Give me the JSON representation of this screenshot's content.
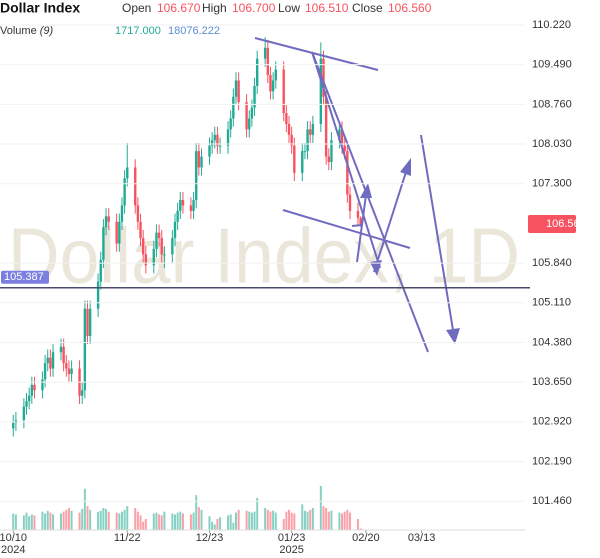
{
  "chart_data": {
    "type": "candlestick",
    "title": "Dollar Index",
    "watermark": "Dollar Index, 1D",
    "legend": [
      {
        "name": "Open",
        "value": 106.67,
        "label": "106.670"
      },
      {
        "name": "High",
        "value": 106.7,
        "label": "106.700"
      },
      {
        "name": "Low",
        "value": 106.51,
        "label": "106.510"
      },
      {
        "name": "Close",
        "value": 106.56,
        "label": "106.560"
      }
    ],
    "volume_title": "Volume",
    "volume_period": "(9)",
    "volume_legend": [
      {
        "value": 1717,
        "label": "1717.000",
        "color": "#22ab94"
      },
      {
        "value": 18076.222,
        "label": "18076.222",
        "color": "#5b8fd6"
      }
    ],
    "up_color": "#22ab94",
    "down_color": "#f7525f",
    "x": [
      "2024-10-10",
      "2024-10-11",
      "2024-10-14",
      "2024-10-15",
      "2024-10-16",
      "2024-10-17",
      "2024-10-18",
      "2024-10-21",
      "2024-10-22",
      "2024-10-23",
      "2024-10-24",
      "2024-10-25",
      "2024-10-28",
      "2024-10-29",
      "2024-10-30",
      "2024-10-31",
      "2024-11-01",
      "2024-11-04",
      "2024-11-05",
      "2024-11-06",
      "2024-11-07",
      "2024-11-08",
      "2024-11-11",
      "2024-11-12",
      "2024-11-13",
      "2024-11-14",
      "2024-11-15",
      "2024-11-18",
      "2024-11-19",
      "2024-11-20",
      "2024-11-21",
      "2024-11-22",
      "2024-11-25",
      "2024-11-26",
      "2024-11-27",
      "2024-11-28",
      "2024-11-29",
      "2024-12-02",
      "2024-12-03",
      "2024-12-04",
      "2024-12-05",
      "2024-12-06",
      "2024-12-09",
      "2024-12-10",
      "2024-12-11",
      "2024-12-12",
      "2024-12-13",
      "2024-12-16",
      "2024-12-17",
      "2024-12-18",
      "2024-12-19",
      "2024-12-20",
      "2024-12-23",
      "2024-12-24",
      "2024-12-25",
      "2024-12-26",
      "2024-12-27",
      "2024-12-30",
      "2024-12-31",
      "2025-01-01",
      "2025-01-02",
      "2025-01-03",
      "2025-01-06",
      "2025-01-07",
      "2025-01-08",
      "2025-01-09",
      "2025-01-10",
      "2025-01-13",
      "2025-01-14",
      "2025-01-15",
      "2025-01-16",
      "2025-01-17",
      "2025-01-20",
      "2025-01-21",
      "2025-01-22",
      "2025-01-23",
      "2025-01-24",
      "2025-01-27",
      "2025-01-28",
      "2025-01-29",
      "2025-01-30",
      "2025-01-31",
      "2025-02-03",
      "2025-02-04",
      "2025-02-05",
      "2025-02-06",
      "2025-02-07",
      "2025-02-10",
      "2025-02-11",
      "2025-02-12",
      "2025-02-13",
      "2025-02-14",
      "2025-02-17",
      "2025-02-18"
    ],
    "ohlc": [
      [
        102.8,
        103.05,
        102.65,
        102.9
      ],
      [
        102.9,
        103.1,
        102.75,
        102.95
      ],
      [
        102.95,
        103.35,
        102.8,
        103.2
      ],
      [
        103.2,
        103.45,
        103.05,
        103.3
      ],
      [
        103.3,
        103.55,
        103.15,
        103.4
      ],
      [
        103.4,
        103.75,
        103.25,
        103.6
      ],
      [
        103.6,
        103.75,
        103.35,
        103.5
      ],
      [
        103.5,
        103.85,
        103.35,
        103.7
      ],
      [
        103.7,
        104.15,
        103.55,
        104.0
      ],
      [
        104.0,
        104.25,
        103.85,
        104.1
      ],
      [
        104.1,
        104.25,
        103.75,
        103.9
      ],
      [
        103.9,
        104.35,
        103.75,
        104.2
      ],
      [
        104.2,
        104.45,
        104.05,
        104.3
      ],
      [
        104.3,
        104.45,
        103.85,
        104.0
      ],
      [
        104.0,
        104.15,
        103.75,
        103.9
      ],
      [
        103.9,
        104.05,
        103.65,
        103.8
      ],
      [
        103.8,
        104.05,
        103.65,
        103.9
      ],
      [
        103.9,
        104.05,
        103.25,
        103.4
      ],
      [
        103.4,
        103.65,
        103.25,
        103.5
      ],
      [
        103.5,
        105.15,
        103.35,
        105.0
      ],
      [
        105.0,
        105.15,
        104.35,
        104.5
      ],
      [
        104.5,
        105.15,
        104.35,
        105.0
      ],
      [
        105.0,
        105.65,
        104.85,
        105.5
      ],
      [
        105.5,
        106.05,
        105.35,
        105.9
      ],
      [
        105.9,
        106.65,
        105.75,
        106.5
      ],
      [
        106.5,
        106.85,
        106.35,
        106.7
      ],
      [
        106.7,
        106.85,
        106.45,
        106.6
      ],
      [
        106.6,
        106.75,
        106.05,
        106.2
      ],
      [
        106.2,
        106.75,
        106.05,
        106.6
      ],
      [
        106.6,
        107.05,
        106.45,
        106.9
      ],
      [
        106.9,
        107.55,
        106.75,
        107.4
      ],
      [
        107.4,
        108.05,
        107.25,
        107.6
      ],
      [
        107.6,
        107.75,
        106.75,
        106.9
      ],
      [
        106.9,
        107.05,
        106.45,
        106.6
      ],
      [
        106.6,
        106.75,
        106.15,
        106.3
      ],
      [
        106.3,
        106.45,
        105.85,
        106.0
      ],
      [
        106.0,
        106.15,
        105.65,
        105.8
      ],
      [
        105.8,
        106.25,
        105.65,
        106.1
      ],
      [
        106.1,
        106.55,
        105.95,
        106.4
      ],
      [
        106.4,
        106.55,
        106.15,
        106.3
      ],
      [
        106.3,
        106.45,
        105.85,
        106.0
      ],
      [
        106.0,
        106.15,
        105.75,
        106.0
      ],
      [
        106.0,
        106.45,
        105.85,
        106.3
      ],
      [
        106.3,
        106.75,
        106.15,
        106.6
      ],
      [
        106.6,
        106.95,
        106.45,
        106.8
      ],
      [
        106.8,
        107.15,
        106.65,
        107.0
      ],
      [
        107.0,
        107.15,
        106.75,
        106.9
      ],
      [
        106.9,
        107.05,
        106.65,
        106.8
      ],
      [
        106.8,
        107.15,
        106.65,
        107.0
      ],
      [
        107.0,
        108.05,
        106.85,
        107.9
      ],
      [
        107.9,
        108.05,
        107.45,
        107.6
      ],
      [
        107.6,
        107.95,
        107.45,
        107.8
      ],
      [
        107.8,
        108.15,
        107.65,
        108.0
      ],
      [
        108.0,
        108.25,
        107.85,
        108.1
      ],
      [
        108.1,
        108.35,
        107.95,
        108.2
      ],
      [
        108.2,
        108.35,
        107.85,
        108.0
      ],
      [
        108.0,
        108.15,
        107.85,
        108.0
      ],
      [
        108.0,
        108.45,
        107.85,
        108.3
      ],
      [
        108.3,
        108.65,
        108.15,
        108.5
      ],
      [
        108.5,
        109.05,
        108.35,
        108.9
      ],
      [
        108.9,
        109.35,
        108.75,
        109.2
      ],
      [
        109.2,
        109.35,
        108.65,
        108.8
      ],
      [
        108.8,
        108.95,
        108.15,
        108.3
      ],
      [
        108.3,
        108.65,
        108.15,
        108.5
      ],
      [
        108.5,
        108.85,
        108.35,
        108.7
      ],
      [
        108.7,
        109.25,
        108.55,
        109.1
      ],
      [
        109.1,
        109.75,
        108.95,
        109.6
      ],
      [
        109.6,
        110.0,
        109.45,
        109.8
      ],
      [
        109.8,
        109.95,
        109.15,
        109.3
      ],
      [
        109.3,
        109.45,
        108.85,
        109.0
      ],
      [
        109.0,
        109.35,
        108.85,
        109.2
      ],
      [
        109.2,
        109.55,
        109.05,
        109.4
      ],
      [
        109.4,
        109.55,
        108.45,
        108.6
      ],
      [
        108.6,
        108.75,
        108.25,
        108.4
      ],
      [
        108.4,
        108.55,
        108.05,
        108.2
      ],
      [
        108.2,
        108.35,
        107.85,
        108.0
      ],
      [
        108.0,
        108.15,
        107.35,
        107.5
      ],
      [
        107.5,
        108.05,
        107.35,
        107.9
      ],
      [
        107.9,
        108.05,
        107.75,
        107.9
      ],
      [
        107.9,
        108.45,
        107.75,
        108.3
      ],
      [
        108.3,
        108.45,
        108.05,
        108.2
      ],
      [
        108.2,
        108.55,
        108.05,
        108.4
      ],
      [
        108.4,
        109.9,
        108.25,
        109.6
      ],
      [
        109.6,
        109.75,
        108.75,
        108.9
      ],
      [
        108.9,
        109.05,
        107.65,
        107.8
      ],
      [
        107.8,
        107.95,
        107.55,
        107.7
      ],
      [
        107.7,
        108.25,
        107.55,
        108.1
      ],
      [
        108.1,
        108.45,
        107.95,
        108.3
      ],
      [
        108.3,
        108.45,
        107.85,
        108.0
      ],
      [
        108.0,
        108.15,
        107.75,
        107.9
      ],
      [
        107.9,
        108.05,
        106.95,
        107.1
      ],
      [
        107.1,
        107.25,
        106.65,
        106.8
      ],
      [
        106.8,
        106.95,
        106.52,
        106.67
      ],
      [
        106.67,
        106.7,
        106.51,
        106.56
      ]
    ],
    "volume": [
      18000,
      17000,
      16000,
      19000,
      15000,
      17000,
      16000,
      20000,
      18000,
      21000,
      19000,
      17000,
      18000,
      20000,
      22000,
      24000,
      21000,
      19000,
      23000,
      45000,
      26000,
      22000,
      20000,
      21000,
      24000,
      23000,
      20000,
      19000,
      18000,
      20000,
      22000,
      26000,
      24000,
      20000,
      16000,
      9000,
      12000,
      18000,
      19000,
      17000,
      16000,
      20000,
      18000,
      17000,
      19000,
      20000,
      18000,
      17000,
      19000,
      38000,
      25000,
      22000,
      15000,
      9000,
      6000,
      12000,
      14000,
      16000,
      17000,
      8000,
      19000,
      22000,
      21000,
      20000,
      19000,
      20000,
      35000,
      24000,
      22000,
      20000,
      21000,
      19000,
      12000,
      20000,
      22000,
      19000,
      18000,
      28000,
      21000,
      20000,
      22000,
      24000,
      48000,
      26000,
      24000,
      20000,
      21000,
      19000,
      18000,
      20000,
      22000,
      19000,
      12000,
      1717
    ],
    "volume_max": 60000,
    "ylim": [
      100.93,
      110.68
    ],
    "yticks": [
      {
        "value": 110.22,
        "label": "110.220"
      },
      {
        "value": 109.49,
        "label": "109.490"
      },
      {
        "value": 108.76,
        "label": "108.760"
      },
      {
        "value": 108.03,
        "label": "108.030"
      },
      {
        "value": 107.3,
        "label": "107.300"
      },
      {
        "value": 105.84,
        "label": "105.840"
      },
      {
        "value": 105.11,
        "label": "105.110"
      },
      {
        "value": 104.38,
        "label": "104.380"
      },
      {
        "value": 103.65,
        "label": "103.650"
      },
      {
        "value": 102.92,
        "label": "102.920"
      },
      {
        "value": 102.19,
        "label": "102.190"
      },
      {
        "value": 101.46,
        "label": "101.460"
      }
    ],
    "xlim": [
      "2024-10-05",
      "2025-04-21"
    ],
    "xticks": [
      {
        "value": "2024-10-10",
        "label": "10/10"
      },
      {
        "value": "2024-11-22",
        "label": "11/22"
      },
      {
        "value": "2024-12-23",
        "label": "12/23"
      },
      {
        "value": "2025-01-23",
        "label": "01/23"
      },
      {
        "value": "2025-02-20",
        "label": "02/20"
      },
      {
        "value": "2025-03-13",
        "label": "03/13"
      }
    ],
    "year_labels": [
      {
        "value": "2024-10-10",
        "label": "2024"
      },
      {
        "value": "2025-01-23",
        "label": "2025"
      }
    ],
    "hline": {
      "value": 105.387,
      "label": "105.387",
      "color": "#4a4a6a"
    },
    "last_price": {
      "value": 106.56,
      "label": "106.560",
      "color": "#f7525f"
    }
  }
}
